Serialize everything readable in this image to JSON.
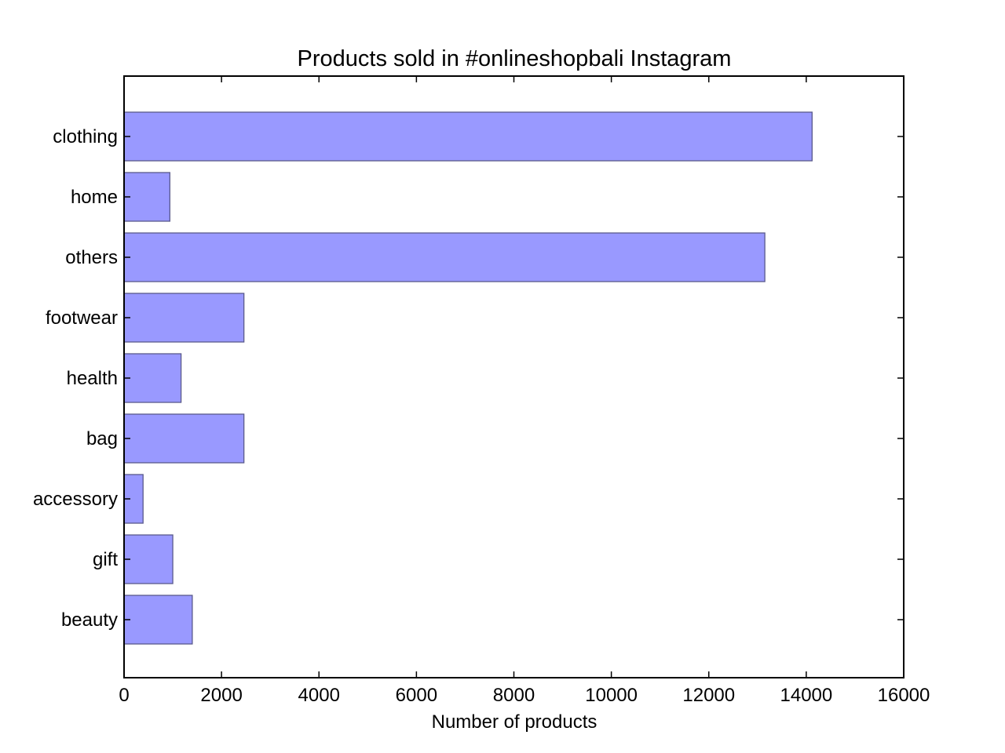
{
  "chart_data": {
    "type": "bar",
    "orientation": "horizontal",
    "title": "Products sold in #onlineshopbali Instagram",
    "xlabel": "Number of products",
    "ylabel": "",
    "categories": [
      "clothing",
      "home",
      "others",
      "footwear",
      "health",
      "bag",
      "accessory",
      "gift",
      "beauty"
    ],
    "values": [
      14120,
      940,
      13150,
      2460,
      1170,
      2460,
      390,
      1000,
      1400
    ],
    "xlim": [
      0,
      16000
    ],
    "xticks": [
      "0",
      "2000",
      "4000",
      "6000",
      "8000",
      "10000",
      "12000",
      "14000",
      "16000"
    ],
    "grid": false,
    "legend": "none",
    "colors": {
      "bar_fill": "#9999ff",
      "bar_edge": "#5a5a8c",
      "axes": "#000000",
      "background": "#ffffff"
    }
  }
}
